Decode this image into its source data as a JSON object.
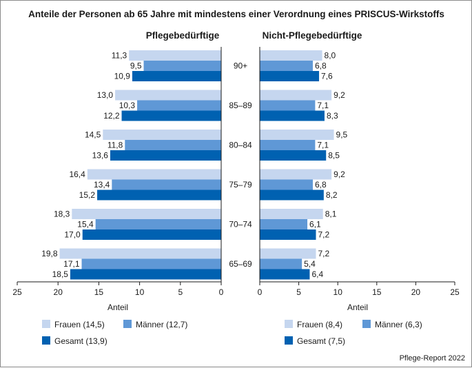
{
  "chart_data": {
    "type": "bar",
    "orientation": "horizontal",
    "title": "Anteile der Personen ab 65 Jahre mit mindestens einer Verordnung eines PRISCUS-Wirkstoffs",
    "categories": [
      "90+",
      "85–89",
      "80–84",
      "75–79",
      "70–74",
      "65–69"
    ],
    "xlabel": "Anteil",
    "xlim": [
      0,
      25
    ],
    "ticks": [
      "0",
      "5",
      "10",
      "15",
      "20",
      "25"
    ],
    "colors": {
      "frauen": "#c5d6ef",
      "maenner": "#5f98d6",
      "gesamt": "#0061b1"
    },
    "panels": [
      {
        "title": "Pflegebedürftige",
        "direction": "reversed",
        "series": [
          {
            "key": "frauen",
            "name": "Frauen",
            "values": [
              11.3,
              13.0,
              14.5,
              16.4,
              18.3,
              19.8
            ],
            "labels": [
              "11,3",
              "13,0",
              "14,5",
              "16,4",
              "18,3",
              "19,8"
            ]
          },
          {
            "key": "maenner",
            "name": "Männer",
            "values": [
              9.5,
              10.3,
              11.8,
              13.4,
              15.4,
              17.1
            ],
            "labels": [
              "9,5",
              "10,3",
              "11,8",
              "13,4",
              "15,4",
              "17,1"
            ]
          },
          {
            "key": "gesamt",
            "name": "Gesamt",
            "values": [
              10.9,
              12.2,
              13.6,
              15.2,
              17.0,
              18.5
            ],
            "labels": [
              "10,9",
              "12,2",
              "13,6",
              "15,2",
              "17,0",
              "18,5"
            ]
          }
        ],
        "legend": {
          "frauen": "Frauen (14,5)",
          "maenner": "Männer (12,7)",
          "gesamt": "Gesamt (13,9)"
        }
      },
      {
        "title": "Nicht-Pflegebedürftige",
        "direction": "normal",
        "series": [
          {
            "key": "frauen",
            "name": "Frauen",
            "values": [
              8.0,
              9.2,
              9.5,
              9.2,
              8.1,
              7.2
            ],
            "labels": [
              "8,0",
              "9,2",
              "9,5",
              "9,2",
              "8,1",
              "7,2"
            ]
          },
          {
            "key": "maenner",
            "name": "Männer",
            "values": [
              6.8,
              7.1,
              7.1,
              6.8,
              6.1,
              5.4
            ],
            "labels": [
              "6,8",
              "7,1",
              "7,1",
              "6,8",
              "6,1",
              "5,4"
            ]
          },
          {
            "key": "gesamt",
            "name": "Gesamt",
            "values": [
              7.6,
              8.3,
              8.5,
              8.2,
              7.2,
              6.4
            ],
            "labels": [
              "7,6",
              "8,3",
              "8,5",
              "8,2",
              "7,2",
              "6,4"
            ]
          }
        ],
        "legend": {
          "frauen": "Frauen (8,4)",
          "maenner": "Männer (6,3)",
          "gesamt": "Gesamt (7,5)"
        }
      }
    ],
    "source": "Pflege-Report 2022"
  }
}
